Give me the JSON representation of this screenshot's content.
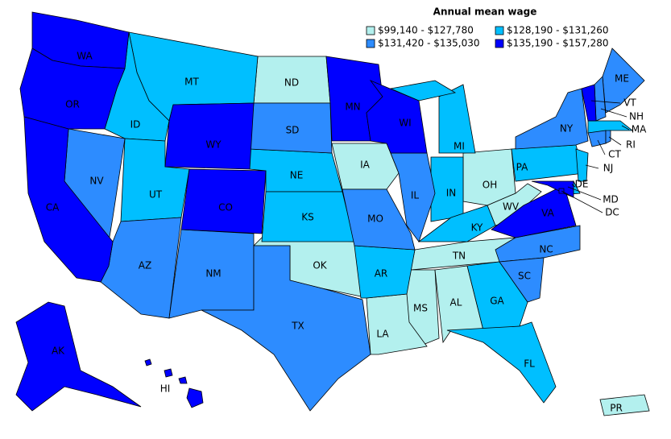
{
  "map": {
    "legend": {
      "title": "Annual mean wage",
      "items": [
        {
          "label": "$99,140 - $127,780",
          "color": "#b3f0ee",
          "states": [
            "ND",
            "IA",
            "OK",
            "OH",
            "WV",
            "TN",
            "MS",
            "AL",
            "LA",
            "PR"
          ]
        },
        {
          "label": "$128,190 - $131,260",
          "color": "#00bfff",
          "states": [
            "MT",
            "ID",
            "UT",
            "NE",
            "KS",
            "MI",
            "IN",
            "KY",
            "AR",
            "PA",
            "GA",
            "FL",
            "NJ",
            "MA",
            "DE"
          ]
        },
        {
          "label": "$131,420 - $135,030",
          "color": "#2d8cff",
          "states": [
            "NV",
            "AZ",
            "NM",
            "TX",
            "SD",
            "MO",
            "IL",
            "NY",
            "NC",
            "SC",
            "ME",
            "CT",
            "RI",
            "NH"
          ]
        },
        {
          "label": "$135,190 - $157,280",
          "color": "#0000ff",
          "states": [
            "WA",
            "OR",
            "CA",
            "WY",
            "CO",
            "MN",
            "WI",
            "VA",
            "MD",
            "DC",
            "VT",
            "AK",
            "HI"
          ]
        }
      ]
    }
  }
}
